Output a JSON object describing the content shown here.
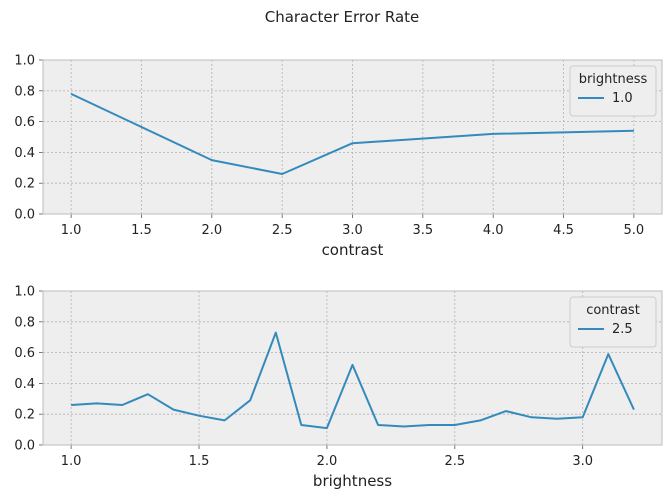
{
  "figure": {
    "title": "Character Error Rate"
  },
  "chart_data": [
    {
      "type": "line",
      "xlabel": "contrast",
      "ylabel": "",
      "xlim": [
        0.8,
        5.2
      ],
      "ylim": [
        0,
        1
      ],
      "xticks": [
        "1.0",
        "1.5",
        "2.0",
        "2.5",
        "3.0",
        "3.5",
        "4.0",
        "4.5",
        "5.0"
      ],
      "yticks": [
        "0.0",
        "0.2",
        "0.4",
        "0.6",
        "0.8",
        "1.0"
      ],
      "grid": true,
      "legend": {
        "title": "brightness",
        "position": "top-right"
      },
      "series": [
        {
          "name": "1.0",
          "color": "#348abd",
          "x": [
            1.0,
            2.0,
            2.5,
            3.0,
            4.0,
            5.0
          ],
          "y": [
            0.78,
            0.35,
            0.26,
            0.46,
            0.52,
            0.54
          ]
        }
      ]
    },
    {
      "type": "line",
      "xlabel": "brightness",
      "ylabel": "",
      "xlim": [
        0.89,
        3.31
      ],
      "ylim": [
        0,
        1
      ],
      "xticks": [
        "1.0",
        "1.5",
        "2.0",
        "2.5",
        "3.0"
      ],
      "yticks": [
        "0.0",
        "0.2",
        "0.4",
        "0.6",
        "0.8",
        "1.0"
      ],
      "grid": true,
      "legend": {
        "title": "contrast",
        "position": "top-right"
      },
      "series": [
        {
          "name": "2.5",
          "color": "#348abd",
          "x": [
            1.0,
            1.1,
            1.2,
            1.3,
            1.4,
            1.5,
            1.6,
            1.7,
            1.8,
            1.9,
            2.0,
            2.1,
            2.2,
            2.3,
            2.4,
            2.5,
            2.6,
            2.7,
            2.8,
            2.9,
            3.0,
            3.1,
            3.2
          ],
          "y": [
            0.26,
            0.27,
            0.26,
            0.33,
            0.23,
            0.19,
            0.16,
            0.29,
            0.73,
            0.13,
            0.11,
            0.52,
            0.13,
            0.12,
            0.13,
            0.13,
            0.16,
            0.22,
            0.18,
            0.17,
            0.18,
            0.59,
            0.23
          ]
        }
      ]
    }
  ]
}
